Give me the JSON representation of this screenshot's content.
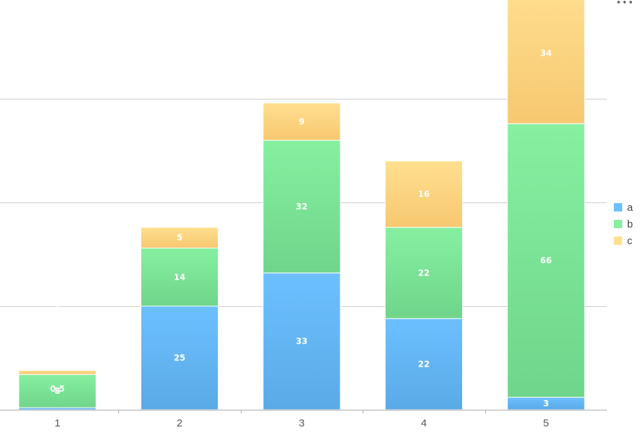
{
  "toolbar": {
    "menu_glyph": "•••"
  },
  "colors": {
    "a": [
      "#6CC0FF",
      "#5AAAE6"
    ],
    "b": [
      "#86F0A0",
      "#6FD58A"
    ],
    "c": [
      "#FFDF90",
      "#F7C870"
    ],
    "grid": "#cccccc",
    "axis": "#aaaaaa"
  },
  "chart_data": {
    "type": "bar",
    "stacked": true,
    "categories": [
      "1",
      "2",
      "3",
      "4",
      "5"
    ],
    "series": [
      {
        "name": "a",
        "values": [
          0.5,
          25,
          33,
          22,
          3
        ],
        "labels": [
          "0.5",
          "25",
          "33",
          "22",
          "3"
        ]
      },
      {
        "name": "b",
        "values": [
          8,
          14,
          32,
          22,
          66
        ],
        "labels": [
          "8",
          "14",
          "32",
          "22",
          "66"
        ]
      },
      {
        "name": "c",
        "values": [
          1,
          5,
          9,
          16,
          34
        ],
        "labels": [
          "1",
          "5",
          "9",
          "16",
          "34"
        ]
      }
    ],
    "ylim": [
      0,
      100
    ],
    "gridlines": [
      25,
      50,
      75
    ],
    "grid": true,
    "legend_position": "right",
    "title": "",
    "xlabel": "",
    "ylabel": ""
  }
}
